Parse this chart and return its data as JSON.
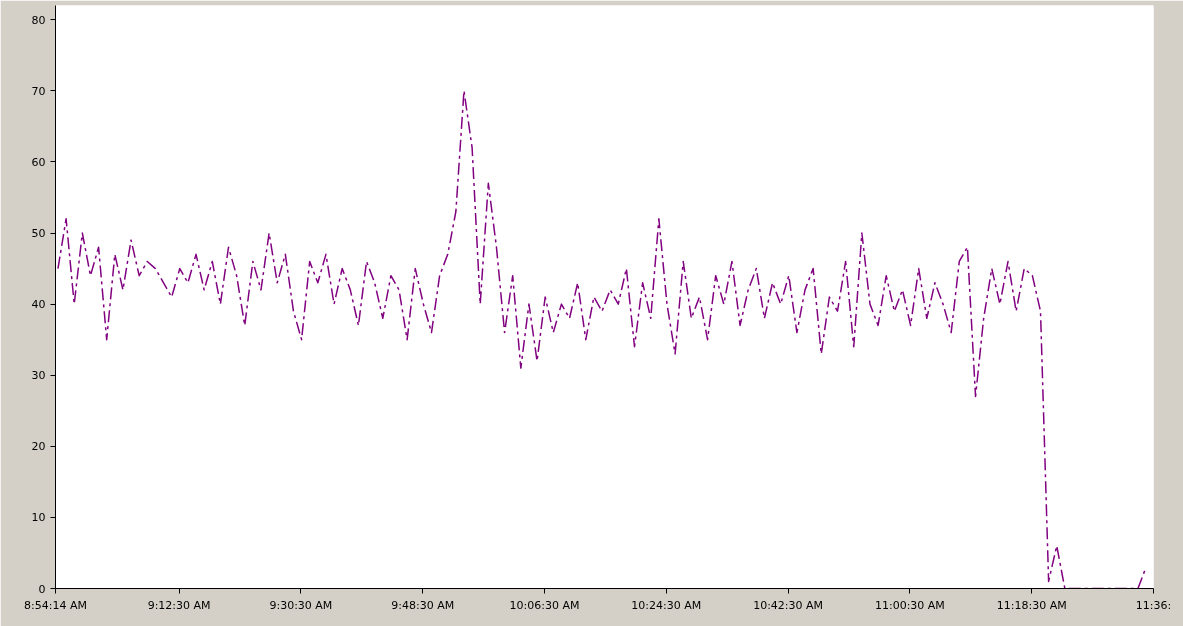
{
  "chart_data": {
    "type": "line",
    "x": [
      8.91,
      8.93,
      8.95,
      8.97,
      8.99,
      9.01,
      9.03,
      9.05,
      9.07,
      9.09,
      9.11,
      9.13,
      9.15,
      9.17,
      9.19,
      9.21,
      9.23,
      9.25,
      9.27,
      9.29,
      9.31,
      9.33,
      9.35,
      9.37,
      9.39,
      9.41,
      9.43,
      9.45,
      9.47,
      9.49,
      9.51,
      9.53,
      9.55,
      9.57,
      9.59,
      9.61,
      9.63,
      9.65,
      9.67,
      9.69,
      9.71,
      9.73,
      9.75,
      9.77,
      9.79,
      9.81,
      9.83,
      9.85,
      9.87,
      9.89,
      9.91,
      9.93,
      9.95,
      9.97,
      9.99,
      10.01,
      10.03,
      10.05,
      10.07,
      10.09,
      10.11,
      10.13,
      10.15,
      10.17,
      10.19,
      10.21,
      10.23,
      10.25,
      10.27,
      10.29,
      10.31,
      10.33,
      10.35,
      10.37,
      10.39,
      10.41,
      10.43,
      10.45,
      10.47,
      10.49,
      10.51,
      10.53,
      10.55,
      10.57,
      10.59,
      10.61,
      10.63,
      10.65,
      10.67,
      10.69,
      10.71,
      10.73,
      10.75,
      10.77,
      10.79,
      10.81,
      10.83,
      10.85,
      10.87,
      10.89,
      10.91,
      10.93,
      10.95,
      10.97,
      10.99,
      11.01,
      11.03,
      11.05,
      11.07,
      11.09,
      11.11,
      11.13,
      11.15,
      11.17,
      11.19,
      11.21,
      11.23,
      11.25,
      11.27,
      11.29,
      11.31,
      11.33,
      11.35,
      11.37,
      11.39,
      11.41,
      11.43,
      11.45,
      11.47,
      11.49,
      11.51,
      11.53,
      11.55,
      11.57,
      11.59
    ],
    "series": [
      {
        "color": "#800080",
        "values": [
          45,
          52,
          40,
          50,
          44,
          48,
          35,
          47,
          42,
          49,
          44,
          46,
          45,
          43,
          41,
          45,
          43,
          47,
          42,
          46,
          40,
          48,
          44,
          37,
          46,
          42,
          50,
          43,
          47,
          39,
          35,
          46,
          43,
          47,
          40,
          45,
          42,
          37,
          46,
          43,
          38,
          44,
          42,
          35,
          45,
          40,
          36,
          44,
          47,
          53,
          70,
          62,
          40,
          57,
          48,
          36,
          44,
          31,
          40,
          32,
          41,
          36,
          40,
          38,
          43,
          35,
          41,
          39,
          42,
          40,
          45,
          34,
          43,
          38,
          52,
          40,
          33,
          46,
          38,
          41,
          35,
          44,
          40,
          46,
          37,
          42,
          45,
          38,
          43,
          40,
          44,
          36,
          42,
          45,
          33,
          41,
          39,
          46,
          34,
          50,
          40,
          37,
          44,
          39,
          42,
          37,
          45,
          38,
          43,
          40,
          36,
          46,
          48,
          27,
          38,
          45,
          40,
          46,
          39,
          45,
          44,
          39,
          1,
          6,
          0,
          0,
          0,
          0,
          0,
          0,
          0,
          0,
          0,
          0,
          3
        ]
      }
    ],
    "xlim": [
      8.903889,
      11.608333
    ],
    "xticks": [
      {
        "value": 8.903889,
        "label": "8:54:14 AM"
      },
      {
        "value": 9.208333,
        "label": "9:12:30 AM"
      },
      {
        "value": 9.508333,
        "label": "9:30:30 AM"
      },
      {
        "value": 9.808333,
        "label": "9:48:30 AM"
      },
      {
        "value": 10.108333,
        "label": "10:06:30 AM"
      },
      {
        "value": 10.408333,
        "label": "10:24:30 AM"
      },
      {
        "value": 10.708333,
        "label": "10:42:30 AM"
      },
      {
        "value": 11.008333,
        "label": "11:00:30 AM"
      },
      {
        "value": 11.308333,
        "label": "11:18:30 AM"
      },
      {
        "value": 11.608333,
        "label": "11:36:"
      }
    ],
    "ylim": [
      0,
      82
    ],
    "yticks": [
      0,
      10,
      20,
      30,
      40,
      50,
      60,
      70,
      80
    ],
    "grid": false,
    "marker": "none",
    "line_style": "dashed"
  }
}
